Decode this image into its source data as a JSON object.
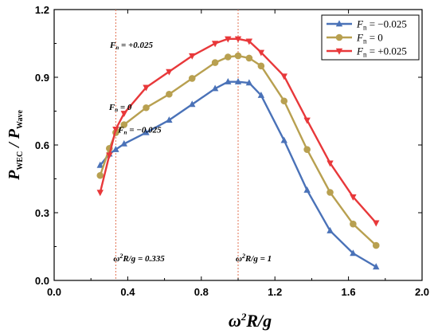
{
  "chart_data": {
    "type": "line",
    "xlabel": "ω²R/g",
    "ylabel": "P_WEC / P_wave",
    "xlim": [
      0.0,
      2.0
    ],
    "ylim": [
      0.0,
      1.2
    ],
    "xticks": [
      "0.0",
      "0.4",
      "0.8",
      "1.2",
      "1.6",
      "2.0"
    ],
    "yticks": [
      "0.0",
      "0.3",
      "0.6",
      "0.9",
      "1.2"
    ],
    "grid": false,
    "legend_position": "top-right",
    "series": [
      {
        "name": "Fn = −0.025",
        "legend_var": "F",
        "legend_sub": "n",
        "legend_val": " = −0.025",
        "color": "#4a72b8",
        "marker": "triangle-up",
        "x": [
          0.25,
          0.3,
          0.335,
          0.38,
          0.5,
          0.625,
          0.75,
          0.875,
          0.945,
          1.0,
          1.06,
          1.125,
          1.25,
          1.375,
          1.5,
          1.625,
          1.75
        ],
        "y": [
          0.51,
          0.56,
          0.58,
          0.605,
          0.655,
          0.71,
          0.78,
          0.85,
          0.88,
          0.88,
          0.875,
          0.82,
          0.62,
          0.4,
          0.22,
          0.12,
          0.06
        ]
      },
      {
        "name": "Fn = 0",
        "legend_var": "F",
        "legend_sub": "n",
        "legend_val": " =    0",
        "color": "#b8a050",
        "marker": "circle",
        "x": [
          0.25,
          0.3,
          0.335,
          0.38,
          0.5,
          0.625,
          0.75,
          0.875,
          0.945,
          1.0,
          1.06,
          1.125,
          1.25,
          1.375,
          1.5,
          1.625,
          1.75
        ],
        "y": [
          0.465,
          0.585,
          0.655,
          0.69,
          0.765,
          0.825,
          0.895,
          0.965,
          0.99,
          0.995,
          0.985,
          0.95,
          0.795,
          0.58,
          0.39,
          0.25,
          0.155
        ]
      },
      {
        "name": "Fn = +0.025",
        "legend_var": "F",
        "legend_sub": "n",
        "legend_val": " = +0.025",
        "color": "#e8383a",
        "marker": "triangle-down",
        "x": [
          0.25,
          0.3,
          0.335,
          0.38,
          0.5,
          0.625,
          0.75,
          0.875,
          0.945,
          1.0,
          1.06,
          1.125,
          1.25,
          1.375,
          1.5,
          1.625,
          1.75
        ],
        "y": [
          0.39,
          0.555,
          0.67,
          0.74,
          0.855,
          0.925,
          0.995,
          1.05,
          1.07,
          1.07,
          1.06,
          1.01,
          0.905,
          0.71,
          0.52,
          0.37,
          0.255
        ]
      }
    ],
    "annotations": [
      {
        "text": "Fn = +0.025",
        "var": "F",
        "sub": "n",
        "val": " = +0.025",
        "x": 0.42,
        "y": 1.03
      },
      {
        "text": "Fn = 0",
        "var": "F",
        "sub": "n",
        "val": " = 0",
        "x": 0.36,
        "y": 0.755
      },
      {
        "text": "Fn = −0.025",
        "var": "F",
        "sub": "n",
        "val": " = −0.025",
        "x": 0.465,
        "y": 0.655
      }
    ],
    "vlines": [
      {
        "x": 0.335,
        "label_pre": "ω",
        "label_sup": "2",
        "label_post": "R/g = 0.335",
        "label_y": 0.085
      },
      {
        "x": 1.0,
        "label_pre": "ω",
        "label_sup": "2",
        "label_post": "R/g = 1",
        "label_y": 0.085
      }
    ]
  }
}
